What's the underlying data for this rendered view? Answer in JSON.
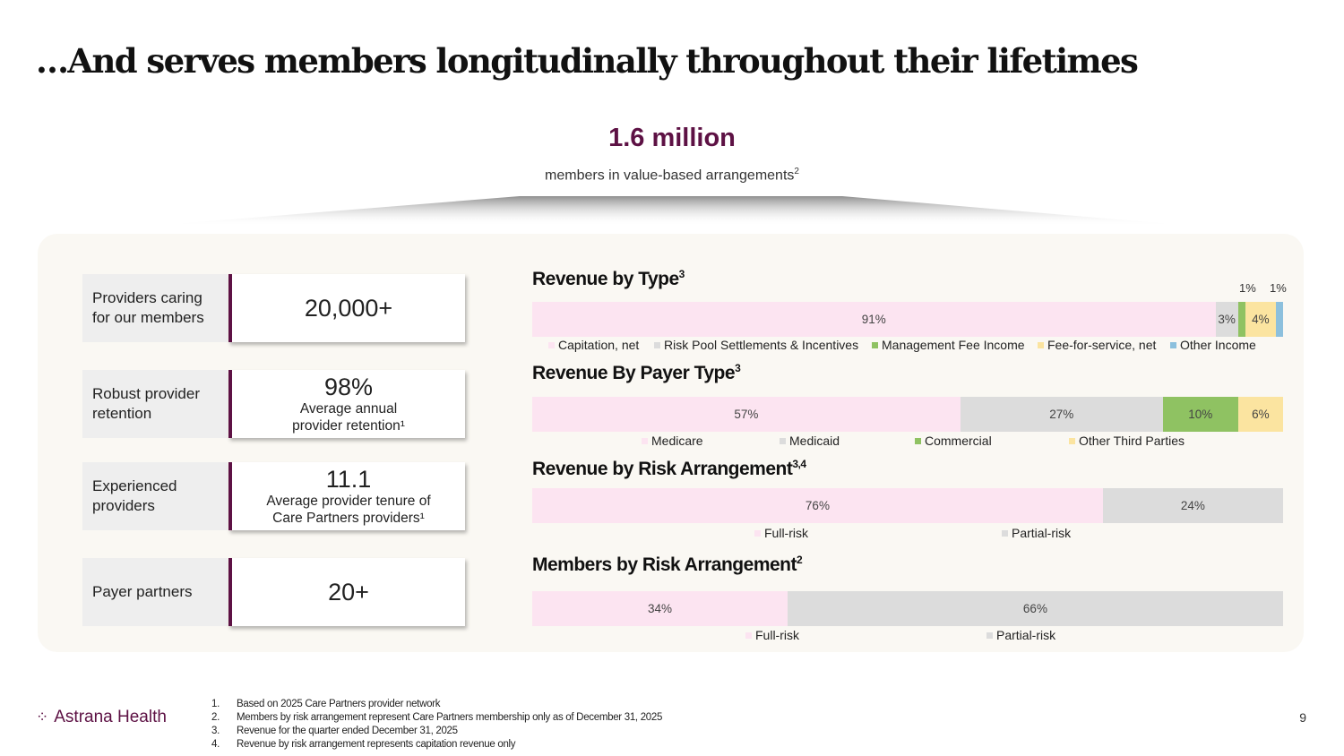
{
  "title": "…And serves members longitudinally throughout their lifetimes",
  "hero": {
    "value": "1.6 million",
    "label": "members in value-based arrangements",
    "sup": "2"
  },
  "kpis": [
    {
      "label": "Providers caring\nfor our members",
      "value": "20,000+",
      "sub": ""
    },
    {
      "label": "Robust provider\nretention",
      "value": "98%",
      "sub": "Average annual\nprovider retention¹"
    },
    {
      "label": "Experienced\nproviders",
      "value": "11.1",
      "sub": "Average provider tenure of\nCare Partners providers¹"
    },
    {
      "label": "Payer partners",
      "value": "20+",
      "sub": ""
    }
  ],
  "colors": {
    "pink": "#fce4f1",
    "gray": "#dcdcdc",
    "green": "#8fc262",
    "yellow": "#fbe4a0",
    "blue": "#8cc0dd",
    "brand": "#5d1144"
  },
  "chart_data": [
    {
      "type": "bar",
      "stacked": true,
      "orientation": "horizontal",
      "title": "Revenue by Type",
      "title_sup": "3",
      "series": [
        {
          "name": "Capitation, net",
          "value": 91,
          "label": "91%",
          "color": "#fce4f1"
        },
        {
          "name": "Risk Pool Settlements & Incentives",
          "value": 3,
          "label": "3%",
          "color": "#dcdcdc"
        },
        {
          "name": "Management Fee Income",
          "value": 1,
          "label": "1%",
          "color": "#8fc262"
        },
        {
          "name": "Fee-for-service, net",
          "value": 4,
          "label": "4%",
          "color": "#fbe4a0"
        },
        {
          "name": "Other Income",
          "value": 1,
          "label": "1%",
          "color": "#8cc0dd"
        }
      ]
    },
    {
      "type": "bar",
      "stacked": true,
      "orientation": "horizontal",
      "title": "Revenue By Payer Type",
      "title_sup": "3",
      "series": [
        {
          "name": "Medicare",
          "value": 57,
          "label": "57%",
          "color": "#fce4f1"
        },
        {
          "name": "Medicaid",
          "value": 27,
          "label": "27%",
          "color": "#dcdcdc"
        },
        {
          "name": "Commercial",
          "value": 10,
          "label": "10%",
          "color": "#8fc262"
        },
        {
          "name": "Other Third Parties",
          "value": 6,
          "label": "6%",
          "color": "#fbe4a0"
        }
      ]
    },
    {
      "type": "bar",
      "stacked": true,
      "orientation": "horizontal",
      "title": "Revenue by Risk Arrangement",
      "title_sup": "3,4",
      "series": [
        {
          "name": "Full-risk",
          "value": 76,
          "label": "76%",
          "color": "#fce4f1"
        },
        {
          "name": "Partial-risk",
          "value": 24,
          "label": "24%",
          "color": "#dcdcdc"
        }
      ]
    },
    {
      "type": "bar",
      "stacked": true,
      "orientation": "horizontal",
      "title": "Members by Risk Arrangement",
      "title_sup": "2",
      "series": [
        {
          "name": "Full-risk",
          "value": 34,
          "label": "34%",
          "color": "#fce4f1"
        },
        {
          "name": "Partial-risk",
          "value": 66,
          "label": "66%",
          "color": "#dcdcdc"
        }
      ]
    }
  ],
  "footer": {
    "logo_mark": "⁘",
    "logo_text": "Astrana Health",
    "notes": [
      {
        "num": "1.",
        "text": "Based on 2025 Care Partners provider network"
      },
      {
        "num": "2.",
        "text": "Members by risk arrangement represent Care Partners membership only as of December 31, 2025"
      },
      {
        "num": "3.",
        "text": "Revenue for the quarter ended December 31, 2025"
      },
      {
        "num": "4.",
        "text": "Revenue by risk arrangement represents capitation revenue only"
      }
    ],
    "page_number": "9"
  }
}
